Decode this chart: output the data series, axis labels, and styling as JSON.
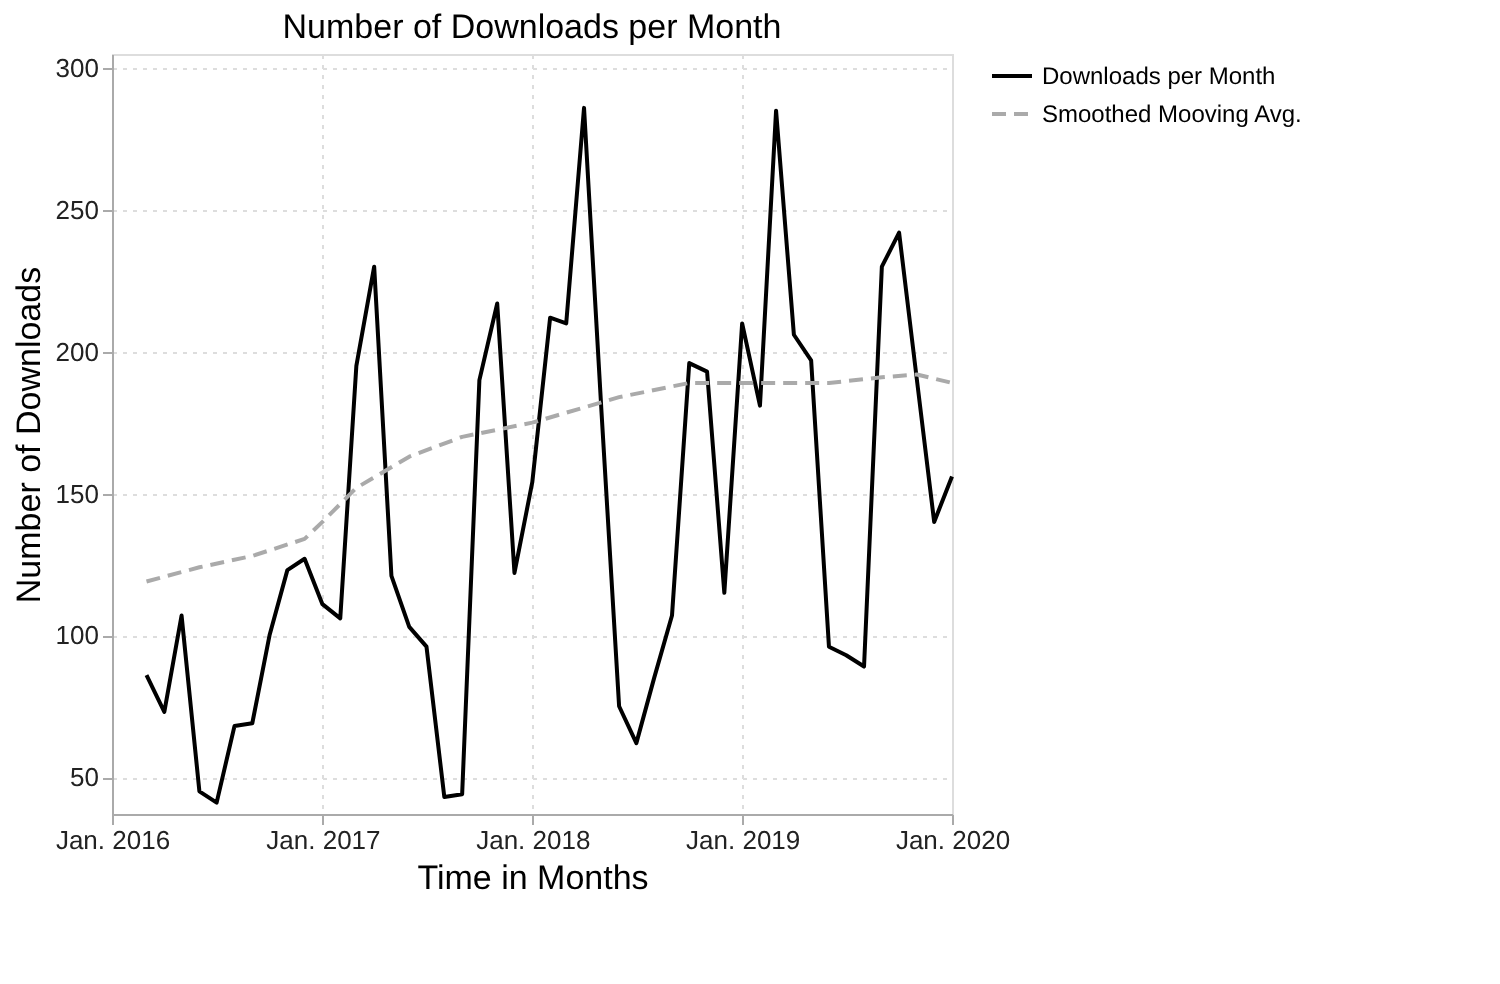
{
  "chart_data": {
    "type": "line",
    "title": "Number of Downloads per Month",
    "xlabel": "Time in Months",
    "ylabel": "Number of Downloads",
    "series": [
      {
        "name": "Downloads per Month",
        "color": "#000000",
        "line_style": "solid",
        "x": [
          "2016-03",
          "2016-04",
          "2016-05",
          "2016-06",
          "2016-07",
          "2016-08",
          "2016-09",
          "2016-10",
          "2016-11",
          "2016-12",
          "2017-01",
          "2017-02",
          "2017-03",
          "2017-04",
          "2017-05",
          "2017-06",
          "2017-07",
          "2017-08",
          "2017-09",
          "2017-10",
          "2017-11",
          "2017-12",
          "2018-01",
          "2018-02",
          "2018-03",
          "2018-04",
          "2018-05",
          "2018-06",
          "2018-07",
          "2018-08",
          "2018-09",
          "2018-10",
          "2018-11",
          "2018-12",
          "2019-01",
          "2019-02",
          "2019-03",
          "2019-04",
          "2019-05",
          "2019-06",
          "2019-07",
          "2019-08",
          "2019-09",
          "2019-10",
          "2019-11",
          "2019-12",
          "2020-01"
        ],
        "values": [
          86,
          73,
          107,
          45,
          41,
          68,
          69,
          100,
          123,
          127,
          111,
          106,
          195,
          230,
          121,
          103,
          96,
          43,
          44,
          190,
          217,
          122,
          154,
          212,
          210,
          286,
          180,
          75,
          62,
          85,
          107,
          196,
          193,
          115,
          210,
          181,
          285,
          206,
          197,
          96,
          93,
          89,
          230,
          242,
          190,
          140,
          156
        ]
      },
      {
        "name": "Smoothed Mooving Avg.",
        "color": "#aaaaaa",
        "line_style": "dashed",
        "x": [
          "2016-03",
          "2016-06",
          "2016-09",
          "2016-12",
          "2017-01",
          "2017-03",
          "2017-06",
          "2017-09",
          "2018-01",
          "2018-06",
          "2018-10",
          "2019-01",
          "2019-06",
          "2019-09",
          "2019-11",
          "2020-01"
        ],
        "values": [
          119,
          124,
          128,
          134,
          140,
          152,
          163,
          170,
          175,
          184,
          189,
          189,
          189,
          191,
          192,
          189
        ]
      }
    ],
    "xlim": [
      "2016-01",
      "2020-01"
    ],
    "xticks": [
      {
        "value": "2016-01",
        "label": "Jan. 2016"
      },
      {
        "value": "2017-01",
        "label": "Jan. 2017"
      },
      {
        "value": "2018-01",
        "label": "Jan. 2018"
      },
      {
        "value": "2019-01",
        "label": "Jan. 2019"
      },
      {
        "value": "2020-01",
        "label": "Jan. 2020"
      }
    ],
    "ylim": [
      37,
      305
    ],
    "yticks": [
      50,
      100,
      150,
      200,
      250,
      300
    ],
    "grid": true,
    "legend": "right",
    "marker": "none"
  }
}
